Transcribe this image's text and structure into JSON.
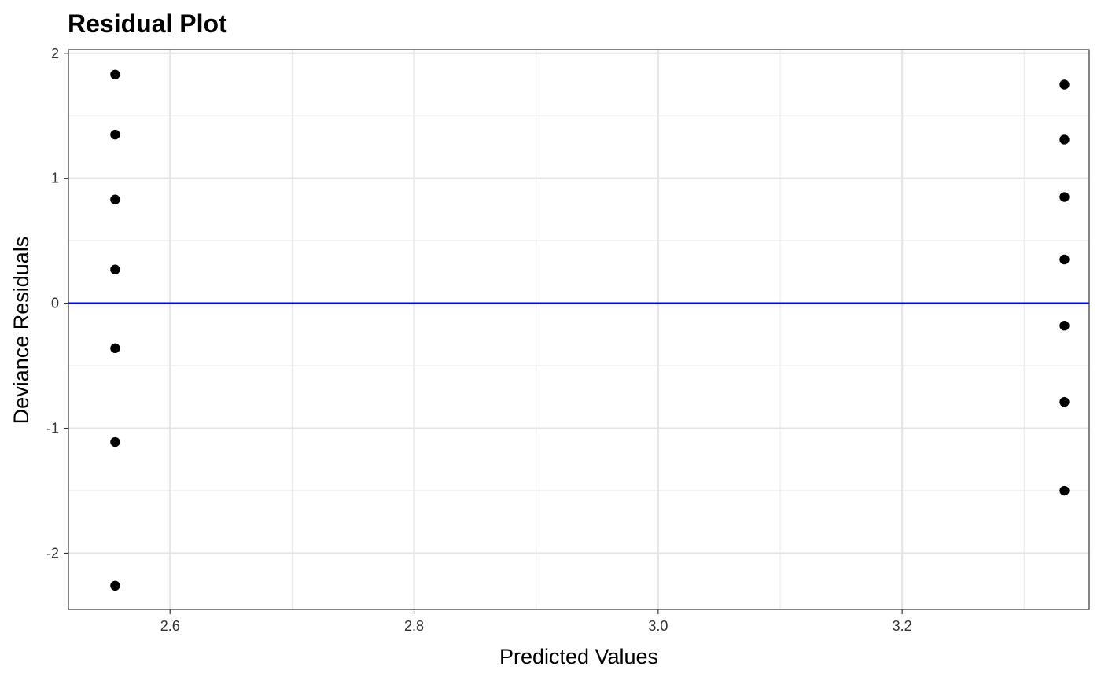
{
  "chart_data": {
    "type": "scatter",
    "title": "Residual Plot",
    "xlabel": "Predicted Values",
    "ylabel": "Deviance Residuals",
    "xlim": [
      2.5167,
      3.3533
    ],
    "ylim": [
      -2.45,
      2.03
    ],
    "xticks": [
      2.6,
      2.8,
      3.0,
      3.2
    ],
    "xtick_labels": [
      "2.6",
      "2.8",
      "3.0",
      "3.2"
    ],
    "yticks": [
      -2,
      -1,
      0,
      1,
      2
    ],
    "ytick_labels": [
      "-2",
      "-1",
      "0",
      "1",
      "2"
    ],
    "grid": true,
    "reference_line": {
      "y": 0,
      "color": "#0000ff"
    },
    "point_color": "#000000",
    "series": [
      {
        "points": [
          {
            "x": 2.555,
            "y": 1.83
          },
          {
            "x": 2.555,
            "y": 1.35
          },
          {
            "x": 2.555,
            "y": 0.83
          },
          {
            "x": 2.555,
            "y": 0.27
          },
          {
            "x": 2.555,
            "y": -0.36
          },
          {
            "x": 2.555,
            "y": -1.11
          },
          {
            "x": 2.555,
            "y": -2.26
          },
          {
            "x": 3.333,
            "y": 1.75
          },
          {
            "x": 3.333,
            "y": 1.31
          },
          {
            "x": 3.333,
            "y": 0.85
          },
          {
            "x": 3.333,
            "y": 0.35
          },
          {
            "x": 3.333,
            "y": -0.18
          },
          {
            "x": 3.333,
            "y": -0.79
          },
          {
            "x": 3.333,
            "y": -1.5
          }
        ]
      }
    ]
  }
}
